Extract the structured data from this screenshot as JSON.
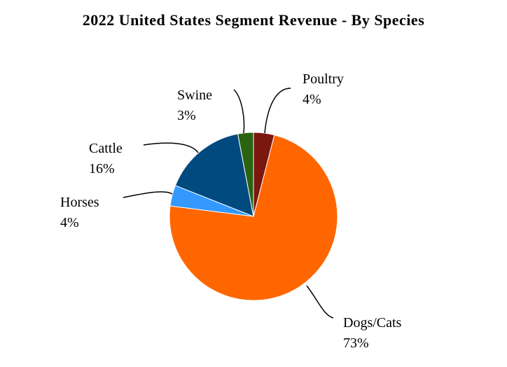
{
  "chart_data": {
    "type": "pie",
    "title": "2022 United States Segment Revenue - By Species",
    "start_angle": "12 o'clock",
    "direction": "clockwise",
    "slices": [
      {
        "name": "Poultry",
        "value": 4,
        "label": "4%",
        "color": "#7A1810"
      },
      {
        "name": "Dogs/Cats",
        "value": 73,
        "label": "73%",
        "color": "#FF6600"
      },
      {
        "name": "Horses",
        "value": 4,
        "label": "4%",
        "color": "#3399FF"
      },
      {
        "name": "Cattle",
        "value": 16,
        "label": "16%",
        "color": "#004A80"
      },
      {
        "name": "Swine",
        "value": 3,
        "label": "3%",
        "color": "#2A6410"
      }
    ]
  }
}
